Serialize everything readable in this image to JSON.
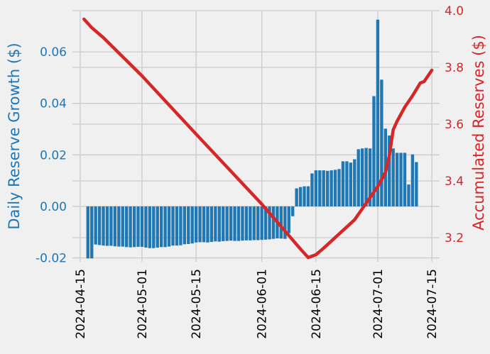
{
  "chart_data": {
    "type": "bar+line",
    "grid": true,
    "style": "fivethirtyeight",
    "colors": {
      "background": "#f0f0f0",
      "grid": "#cbcbcb",
      "bars": "#1f77b4",
      "line": "#d62728"
    },
    "x": {
      "type": "date",
      "range": [
        "2024-04-13",
        "2024-07-17"
      ],
      "ticks": [
        "2024-04-15",
        "2024-05-01",
        "2024-05-15",
        "2024-06-01",
        "2024-06-15",
        "2024-07-01",
        "2024-07-15"
      ],
      "tick_rotation": 90
    },
    "y_left": {
      "label": "Daily Reserve Growth ($)",
      "range": [
        -0.0215,
        0.076
      ],
      "ticks": [
        "-0.02",
        "0.00",
        "0.02",
        "0.04",
        "0.06"
      ],
      "color": "#1f77b4"
    },
    "y_right": {
      "label": "Accumulated Reserves ($)",
      "range": [
        3.115,
        4.0
      ],
      "ticks": [
        "3.2",
        "3.4",
        "3.6",
        "3.8",
        "4.0"
      ],
      "color": "#d62728"
    },
    "bars": {
      "name": "Daily Reserve Growth",
      "start": "2024-04-17",
      "values": [
        -0.0202,
        -0.0202,
        -0.0148,
        -0.015,
        -0.0152,
        -0.0153,
        -0.0153,
        -0.0155,
        -0.0156,
        -0.0156,
        -0.0158,
        -0.0159,
        -0.0158,
        -0.0157,
        -0.0157,
        -0.016,
        -0.0162,
        -0.0162,
        -0.016,
        -0.0158,
        -0.0158,
        -0.0156,
        -0.0152,
        -0.0152,
        -0.0151,
        -0.0147,
        -0.0146,
        -0.0144,
        -0.014,
        -0.0139,
        -0.0139,
        -0.014,
        -0.0138,
        -0.0136,
        -0.0137,
        -0.0135,
        -0.0134,
        -0.0133,
        -0.0134,
        -0.0134,
        -0.0133,
        -0.0132,
        -0.0132,
        -0.0131,
        -0.0131,
        -0.013,
        -0.0129,
        -0.0128,
        -0.0126,
        -0.0124,
        -0.0125,
        -0.0126,
        -0.0104,
        -0.0038,
        0.007,
        0.0075,
        0.0078,
        0.0078,
        0.0128,
        0.014,
        0.014,
        0.014,
        0.0138,
        0.014,
        0.0142,
        0.0145,
        0.0175,
        0.0175,
        0.017,
        0.0183,
        0.0222,
        0.0225,
        0.0227,
        0.0225,
        0.0428,
        0.0725,
        0.0492,
        0.0302,
        0.0275,
        0.0225,
        0.0208,
        0.0208,
        0.0208,
        0.0085,
        0.0202,
        0.0172
      ]
    },
    "line": {
      "name": "Accumulated Reserves",
      "points": [
        [
          "2024-04-16",
          3.97
        ],
        [
          "2024-04-18",
          3.94
        ],
        [
          "2024-04-21",
          3.905
        ],
        [
          "2024-05-01",
          3.77
        ],
        [
          "2024-05-15",
          3.565
        ],
        [
          "2024-06-01",
          3.318
        ],
        [
          "2024-06-11",
          3.16
        ],
        [
          "2024-06-13",
          3.13
        ],
        [
          "2024-06-15",
          3.14
        ],
        [
          "2024-06-17",
          3.163
        ],
        [
          "2024-06-25",
          3.263
        ],
        [
          "2024-07-01",
          3.38
        ],
        [
          "2024-07-03",
          3.43
        ],
        [
          "2024-07-04",
          3.49
        ],
        [
          "2024-07-05",
          3.58
        ],
        [
          "2024-07-06",
          3.61
        ],
        [
          "2024-07-08",
          3.66
        ],
        [
          "2024-07-10",
          3.7
        ],
        [
          "2024-07-12",
          3.745
        ],
        [
          "2024-07-13",
          3.75
        ],
        [
          "2024-07-15",
          3.79
        ]
      ]
    }
  }
}
